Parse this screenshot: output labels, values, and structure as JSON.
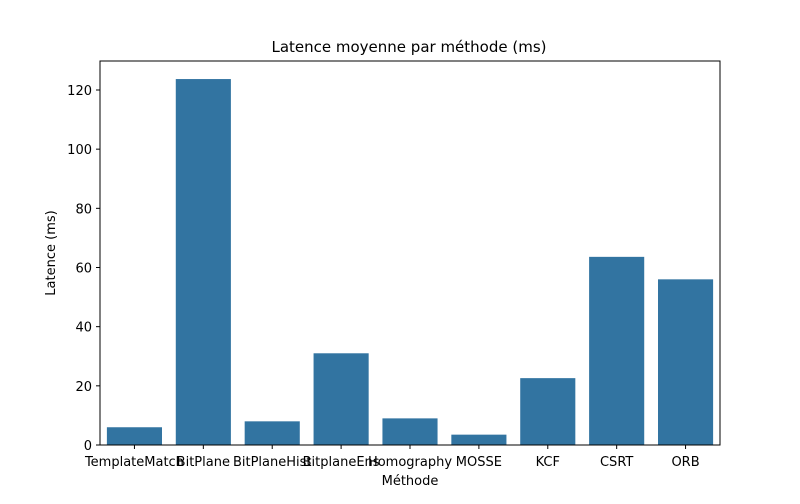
{
  "chart_data": {
    "type": "bar",
    "title": "Latence moyenne par méthode (ms)",
    "xlabel": "Méthode",
    "ylabel": "Latence (ms)",
    "categories": [
      "TemplateMatch",
      "BitPlane",
      "BitPlaneHist",
      "BitplaneEns",
      "Homography",
      "MOSSE",
      "KCF",
      "CSRT",
      "ORB"
    ],
    "values": [
      6.0,
      123.7,
      8.0,
      31.0,
      9.0,
      3.5,
      22.6,
      63.6,
      56.0
    ],
    "ylim": [
      0,
      129.8
    ],
    "yticks": [
      0,
      20,
      40,
      60,
      80,
      100,
      120
    ],
    "grid": false,
    "legend": "none",
    "bar_color": "#3274a1"
  }
}
